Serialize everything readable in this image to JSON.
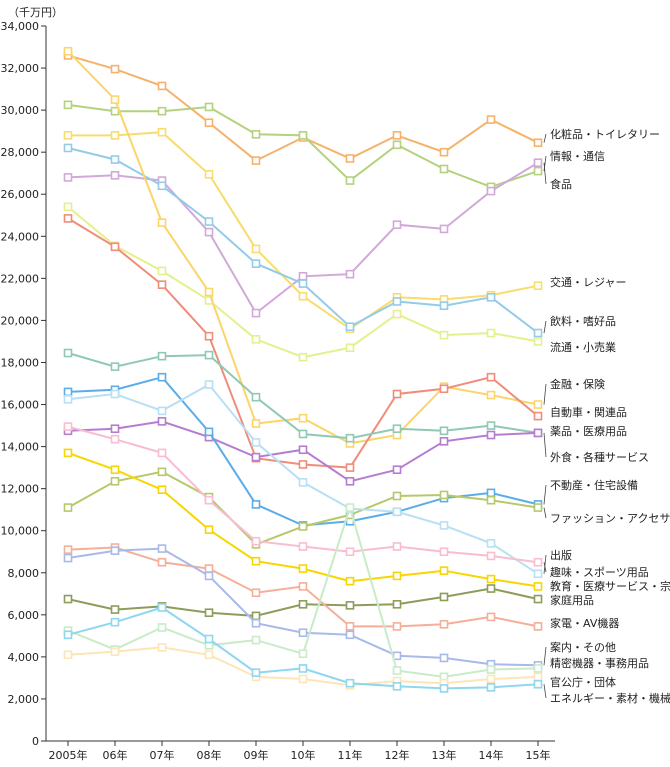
{
  "chart_data": {
    "type": "line",
    "unit": "（千万円）",
    "categories": [
      "2005年",
      "06年",
      "07年",
      "08年",
      "09年",
      "10年",
      "11年",
      "12年",
      "13年",
      "14年",
      "15年"
    ],
    "ylim": [
      0,
      34000
    ],
    "yticks": [
      "0",
      "2,000",
      "4,000",
      "6,000",
      "8,000",
      "10,000",
      "12,000",
      "14,000",
      "16,000",
      "18,000",
      "20,000",
      "22,000",
      "24,000",
      "26,000",
      "28,000",
      "30,000",
      "32,000",
      "34,000"
    ],
    "grid": false,
    "series": [
      {
        "name": "化粧品・トイレタリー",
        "color": "#f6b26b",
        "values": [
          32600,
          31950,
          31150,
          29400,
          27600,
          28700,
          27700,
          28800,
          28000,
          29550,
          28450
        ]
      },
      {
        "name": "情報・通信",
        "color": "#b4d17e",
        "values": [
          30250,
          29950,
          29950,
          30150,
          28850,
          28800,
          26650,
          28350,
          27200,
          26350,
          27100
        ]
      },
      {
        "name": "食品",
        "color": "#d2a8d8",
        "values": [
          26800,
          26900,
          26650,
          24200,
          20350,
          22100,
          22200,
          24550,
          24350,
          26150,
          27500
        ]
      },
      {
        "name": "交通・レジャー",
        "color": "#f8dc6e",
        "values": [
          28800,
          28800,
          28950,
          26950,
          23400,
          21150,
          19600,
          21100,
          21000,
          21200,
          21650
        ]
      },
      {
        "name": "飲料・嗜好品",
        "color": "#93cbe8",
        "values": [
          28200,
          27650,
          26400,
          24700,
          22700,
          21750,
          19700,
          20900,
          20700,
          21100,
          19400
        ]
      },
      {
        "name": "流通・小売業",
        "color": "#e4f08c",
        "values": [
          25400,
          23550,
          22350,
          20950,
          19100,
          18250,
          18700,
          20300,
          19300,
          19400,
          19000
        ]
      },
      {
        "name": "金融・保険",
        "color": "#fbd46a",
        "values": [
          32800,
          30500,
          24650,
          21350,
          15100,
          15350,
          14150,
          14550,
          16850,
          16450,
          16000
        ]
      },
      {
        "name": "自動車・関連品",
        "color": "#f08c7a",
        "values": [
          24850,
          23500,
          21700,
          19250,
          13450,
          13150,
          13000,
          16500,
          16750,
          17300,
          15450
        ]
      },
      {
        "name": "薬品・医療用品",
        "color": "#8fc9b4",
        "values": [
          18450,
          17800,
          18300,
          18350,
          16350,
          14600,
          14400,
          14850,
          14750,
          15000,
          14650
        ]
      },
      {
        "name": "外食・各種サービス",
        "color": "#b57ccf",
        "values": [
          14750,
          14850,
          15200,
          14450,
          13500,
          13850,
          12350,
          12900,
          14250,
          14550,
          14650
        ]
      },
      {
        "name": "不動産・住宅設備",
        "color": "#5aade8",
        "values": [
          16600,
          16700,
          17300,
          14700,
          11250,
          10250,
          10450,
          10900,
          11550,
          11800,
          11250
        ]
      },
      {
        "name": "ファッション・アクセサリー",
        "color": "#b5c96a",
        "values": [
          11100,
          12350,
          12800,
          11600,
          9350,
          10200,
          10750,
          11650,
          11700,
          11450,
          11100
        ]
      },
      {
        "name": "出版",
        "color": "#b8dff3",
        "values": [
          16250,
          16500,
          15700,
          16950,
          14200,
          12300,
          11050,
          10900,
          10250,
          9400,
          7950
        ]
      },
      {
        "name": "趣味・スポーツ用品",
        "color": "#f8bdd0",
        "values": [
          14950,
          14350,
          13700,
          11450,
          9500,
          9250,
          9000,
          9250,
          9000,
          8800,
          8500
        ]
      },
      {
        "name": "教育・医療サービス・宗教",
        "color": "#f7d600",
        "values": [
          13700,
          12900,
          11950,
          10050,
          8550,
          8200,
          7600,
          7850,
          8100,
          7700,
          7350
        ]
      },
      {
        "name": "家庭用品",
        "color": "#8c9c5a",
        "values": [
          6750,
          6250,
          6400,
          6100,
          5950,
          6500,
          6450,
          6500,
          6850,
          7250,
          6750
        ]
      },
      {
        "name": "家電・AV機器",
        "color": "#f6ae99",
        "values": [
          9100,
          9200,
          8500,
          8200,
          7050,
          7350,
          5450,
          5450,
          5550,
          5900,
          5450
        ]
      },
      {
        "name": "案内・その他",
        "color": "#a9b9e8",
        "values": [
          8700,
          9050,
          9150,
          7850,
          5600,
          5150,
          5050,
          4050,
          3950,
          3650,
          3600
        ]
      },
      {
        "name": "精密機器・事務用品",
        "color": "#c8ebc8",
        "values": [
          5250,
          4350,
          5400,
          4550,
          4800,
          4150,
          11100,
          3350,
          3050,
          3400,
          3450
        ]
      },
      {
        "name": "官公庁・団体",
        "color": "#fde5b5",
        "values": [
          4100,
          4250,
          4450,
          4100,
          3050,
          2950,
          2650,
          2850,
          2750,
          2950,
          3050
        ]
      },
      {
        "name": "エネルギー・素材・機械",
        "color": "#8fd6ef",
        "values": [
          5050,
          5650,
          6350,
          4850,
          3250,
          3450,
          2750,
          2600,
          2500,
          2550,
          2700
        ]
      }
    ]
  }
}
